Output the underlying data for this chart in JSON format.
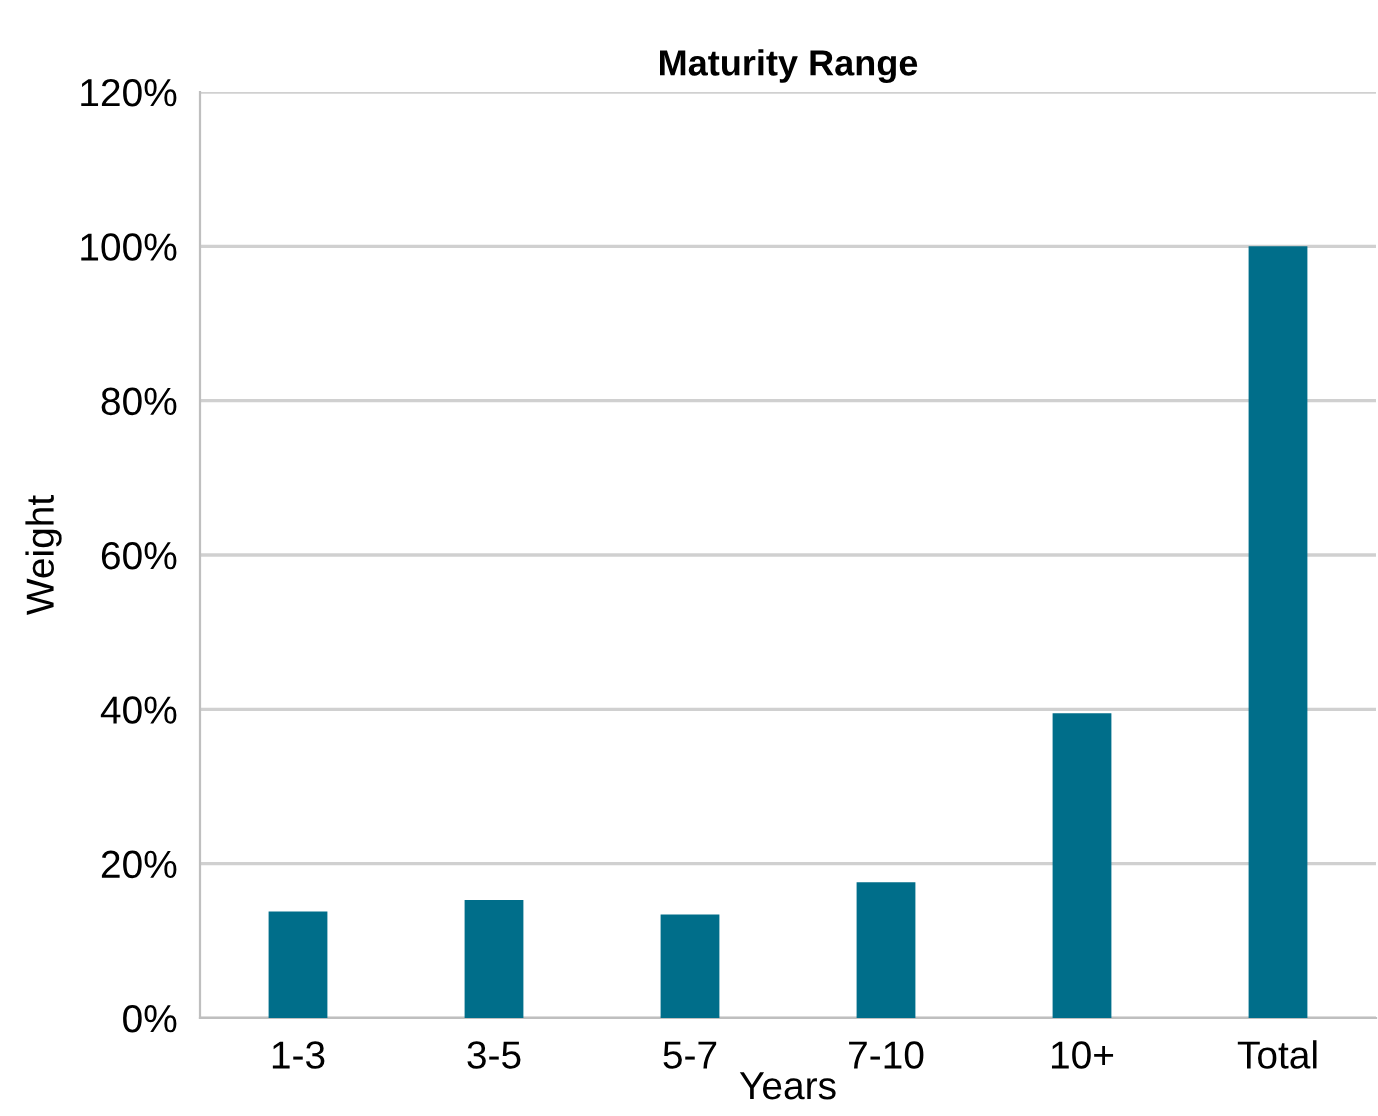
{
  "chart_data": {
    "type": "bar",
    "title": "Maturity Range",
    "xlabel": "Years",
    "ylabel": "Weight",
    "categories": [
      "1-3",
      "3-5",
      "5-7",
      "7-10",
      "10+",
      "Total"
    ],
    "values": [
      13.8,
      15.3,
      13.4,
      17.6,
      39.5,
      100
    ],
    "color": "#006e8a",
    "ylim": [
      0,
      120
    ],
    "yticks": [
      {
        "value": 0,
        "label": "0%"
      },
      {
        "value": 20,
        "label": "20%"
      },
      {
        "value": 40,
        "label": "40%"
      },
      {
        "value": 60,
        "label": "60%"
      },
      {
        "value": 80,
        "label": "80%"
      },
      {
        "value": 100,
        "label": "100%"
      },
      {
        "value": 120,
        "label": "120%"
      }
    ],
    "grid": "y"
  }
}
